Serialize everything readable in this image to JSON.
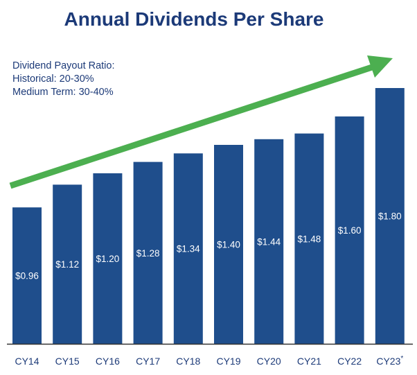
{
  "title": "Annual Dividends Per Share",
  "payout_note": {
    "heading": "Dividend Payout Ratio:",
    "historical": "Historical: 20-30%",
    "medium_term": "Medium Term: 30-40%"
  },
  "colors": {
    "bar": "#1f4e8c",
    "title": "#1c3a78",
    "trend_arrow": "#4caf50",
    "axis": "#333333"
  },
  "chart_data": {
    "type": "bar",
    "title": "Annual Dividends Per Share",
    "categories": [
      "CY14",
      "CY15",
      "CY16",
      "CY17",
      "CY18",
      "CY19",
      "CY20",
      "CY21",
      "CY22",
      "CY23"
    ],
    "category_footnote_marks": [
      "",
      "",
      "",
      "",
      "",
      "",
      "",
      "",
      "",
      "*"
    ],
    "values": [
      0.96,
      1.12,
      1.2,
      1.28,
      1.34,
      1.4,
      1.44,
      1.48,
      1.6,
      1.8
    ],
    "value_labels": [
      "$0.96",
      "$1.12",
      "$1.20",
      "$1.28",
      "$1.34",
      "$1.40",
      "$1.44",
      "$1.48",
      "$1.60",
      "$1.80"
    ],
    "xlabel": "",
    "ylabel": "",
    "ylim": [
      0,
      1.8
    ],
    "grid": false,
    "trend_arrow": true
  }
}
